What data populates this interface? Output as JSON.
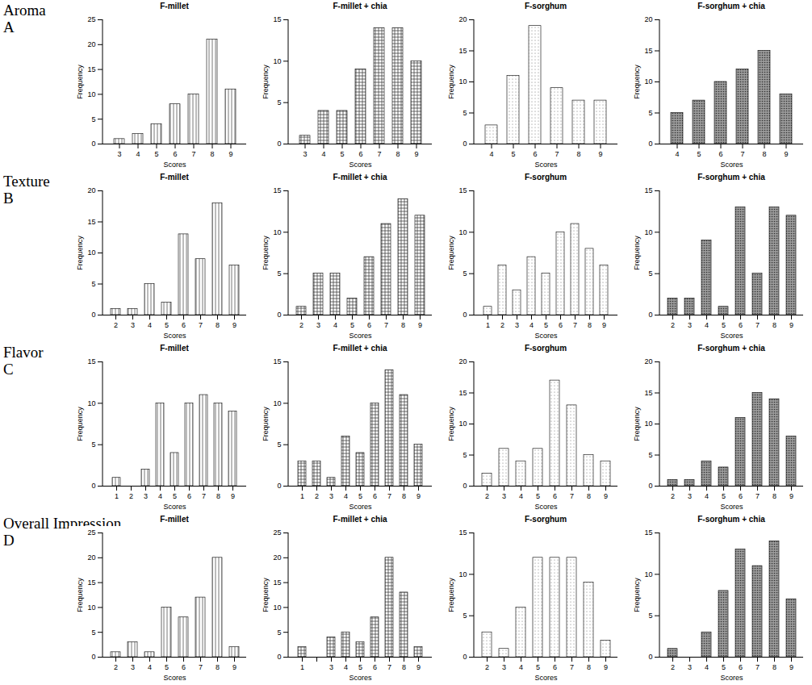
{
  "row_labels": [
    {
      "text": "Aroma",
      "letter": "A"
    },
    {
      "text": "Texture",
      "letter": "B"
    },
    {
      "text": "Flavor",
      "letter": "C"
    },
    {
      "text": "Overall Impression",
      "letter": "D"
    }
  ],
  "chart_data": [
    {
      "type": "bar",
      "title": "F-millet",
      "x_label": "Scores",
      "y_label": "Frequency",
      "categories": [
        3,
        4,
        5,
        6,
        7,
        8,
        9
      ],
      "values": [
        1,
        2,
        4,
        8,
        10,
        21,
        11
      ],
      "ylim": [
        0,
        25
      ],
      "yticks": [
        0,
        5,
        10,
        15,
        20,
        25
      ]
    },
    {
      "type": "bar",
      "title": "F-millet + chia",
      "x_label": "Scores",
      "y_label": "Frequency",
      "categories": [
        3,
        4,
        5,
        6,
        7,
        8,
        9
      ],
      "values": [
        1,
        4,
        4,
        9,
        14,
        14,
        10
      ],
      "ylim": [
        0,
        15
      ],
      "yticks": [
        0,
        5,
        10,
        15
      ]
    },
    {
      "type": "bar",
      "title": "F-sorghum",
      "x_label": "Scores",
      "y_label": "Frequency",
      "categories": [
        4,
        5,
        6,
        7,
        8,
        9
      ],
      "values": [
        3,
        11,
        19,
        9,
        7,
        7
      ],
      "ylim": [
        0,
        20
      ],
      "yticks": [
        0,
        5,
        10,
        15,
        20
      ]
    },
    {
      "type": "bar",
      "title": "F-sorghum + chia",
      "x_label": "Scores",
      "y_label": "Frequency",
      "categories": [
        4,
        5,
        6,
        7,
        8,
        9
      ],
      "values": [
        5,
        7,
        10,
        12,
        15,
        8
      ],
      "ylim": [
        0,
        20
      ],
      "yticks": [
        0,
        5,
        10,
        15,
        20
      ]
    },
    {
      "type": "bar",
      "title": "F-millet",
      "x_label": "Scores",
      "y_label": "Frequency",
      "categories": [
        2,
        3,
        4,
        5,
        6,
        7,
        8,
        9
      ],
      "values": [
        1,
        1,
        5,
        2,
        13,
        9,
        18,
        8
      ],
      "ylim": [
        0,
        20
      ],
      "yticks": [
        0,
        5,
        10,
        15,
        20
      ]
    },
    {
      "type": "bar",
      "title": "F-millet + chia",
      "x_label": "Scores",
      "y_label": "Frequency",
      "categories": [
        2,
        3,
        4,
        5,
        6,
        7,
        8,
        9
      ],
      "values": [
        1,
        5,
        5,
        2,
        7,
        11,
        14,
        12
      ],
      "ylim": [
        0,
        15
      ],
      "yticks": [
        0,
        5,
        10,
        15
      ]
    },
    {
      "type": "bar",
      "title": "F-sorghum",
      "x_label": "Scores",
      "y_label": "Frequency",
      "categories": [
        1,
        2,
        3,
        4,
        5,
        6,
        7,
        8,
        9
      ],
      "values": [
        1,
        6,
        3,
        7,
        5,
        10,
        11,
        8,
        6
      ],
      "ylim": [
        0,
        15
      ],
      "yticks": [
        0,
        5,
        10,
        15
      ]
    },
    {
      "type": "bar",
      "title": "F-sorghum + chia",
      "x_label": "Scores",
      "y_label": "Frequency",
      "categories": [
        2,
        3,
        4,
        5,
        6,
        7,
        8,
        9
      ],
      "values": [
        2,
        2,
        9,
        1,
        13,
        5,
        13,
        12
      ],
      "ylim": [
        0,
        15
      ],
      "yticks": [
        0,
        5,
        10,
        15
      ]
    },
    {
      "type": "bar",
      "title": "F-millet",
      "x_label": "Scores",
      "y_label": "Frequency",
      "categories": [
        1,
        2,
        3,
        4,
        5,
        6,
        7,
        8,
        9
      ],
      "values": [
        1,
        0,
        2,
        10,
        4,
        10,
        11,
        10,
        9
      ],
      "ylim": [
        0,
        15
      ],
      "yticks": [
        0,
        5,
        10,
        15
      ]
    },
    {
      "type": "bar",
      "title": "F-millet + chia",
      "x_label": "Scores",
      "y_label": "Frequency",
      "categories": [
        1,
        2,
        3,
        4,
        5,
        6,
        7,
        8,
        9
      ],
      "values": [
        3,
        3,
        1,
        6,
        4,
        10,
        14,
        11,
        5
      ],
      "ylim": [
        0,
        15
      ],
      "yticks": [
        0,
        5,
        10,
        15
      ]
    },
    {
      "type": "bar",
      "title": "F-sorghum",
      "x_label": "Scores",
      "y_label": "Frequency",
      "categories": [
        2,
        3,
        4,
        5,
        6,
        7,
        8,
        9
      ],
      "values": [
        2,
        6,
        4,
        6,
        17,
        13,
        5,
        4
      ],
      "ylim": [
        0,
        20
      ],
      "yticks": [
        0,
        5,
        10,
        15,
        20
      ]
    },
    {
      "type": "bar",
      "title": "F-sorghum + chia",
      "x_label": "Scores",
      "y_label": "Frequency",
      "categories": [
        2,
        3,
        4,
        5,
        6,
        7,
        8,
        9
      ],
      "values": [
        1,
        1,
        4,
        3,
        11,
        15,
        14,
        8
      ],
      "ylim": [
        0,
        20
      ],
      "yticks": [
        0,
        5,
        10,
        15,
        20
      ]
    },
    {
      "type": "bar",
      "title": "F-millet",
      "x_label": "Scores",
      "y_label": "Frequency",
      "categories": [
        2,
        3,
        4,
        5,
        6,
        7,
        8,
        9
      ],
      "values": [
        1,
        3,
        1,
        10,
        8,
        12,
        20,
        2
      ],
      "ylim": [
        0,
        25
      ],
      "yticks": [
        0,
        5,
        10,
        15,
        20,
        25
      ]
    },
    {
      "type": "bar",
      "title": "F-millet + chia",
      "x_label": "Scores",
      "y_label": "Frequency",
      "categories": [
        1,
        null,
        3,
        4,
        5,
        6,
        7,
        8,
        9
      ],
      "values": [
        2,
        0,
        4,
        5,
        3,
        8,
        20,
        13,
        2
      ],
      "ylim": [
        0,
        25
      ],
      "yticks": [
        0,
        5,
        10,
        15,
        20,
        25
      ]
    },
    {
      "type": "bar",
      "title": "F-sorghum",
      "x_label": "Scores",
      "y_label": "Frequency",
      "categories": [
        2,
        3,
        4,
        5,
        6,
        7,
        8,
        9
      ],
      "values": [
        3,
        1,
        6,
        12,
        12,
        12,
        9,
        2
      ],
      "ylim": [
        0,
        15
      ],
      "yticks": [
        0,
        5,
        10,
        15
      ]
    },
    {
      "type": "bar",
      "title": "F-sorghum + chia",
      "x_label": "Scores",
      "y_label": "Frequency",
      "categories": [
        2,
        3,
        4,
        5,
        6,
        7,
        8,
        9
      ],
      "values": [
        1,
        0,
        3,
        8,
        13,
        11,
        14,
        7
      ],
      "ylim": [
        0,
        15
      ],
      "yticks": [
        0,
        5,
        10,
        15
      ]
    }
  ]
}
